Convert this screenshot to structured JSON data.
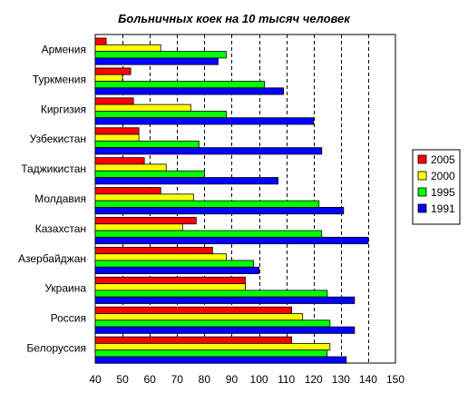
{
  "chart_data": {
    "type": "bar",
    "orientation": "horizontal",
    "title": "Больничных коек на 10 тысяч человек",
    "xlabel": "",
    "ylabel": "",
    "xlim": [
      40,
      150
    ],
    "xticks": [
      40,
      50,
      60,
      70,
      80,
      90,
      100,
      110,
      120,
      130,
      140,
      150
    ],
    "grid": "vertical dashed",
    "legend_position": "right",
    "categories": [
      "Армения",
      "Туркмения",
      "Киргизия",
      "Узбекистан",
      "Таджикистан",
      "Молдавия",
      "Казахстан",
      "Азербайджан",
      "Украина",
      "Россия",
      "Белоруссия"
    ],
    "series": [
      {
        "name": "2005",
        "color": "#ff0000",
        "values": [
          44,
          53,
          54,
          56,
          58,
          64,
          77,
          83,
          95,
          112,
          112
        ]
      },
      {
        "name": "2000",
        "color": "#ffff00",
        "values": [
          64,
          50,
          75,
          56,
          66,
          76,
          72,
          88,
          95,
          116,
          126
        ]
      },
      {
        "name": "1995",
        "color": "#00ff00",
        "values": [
          88,
          102,
          88,
          78,
          80,
          122,
          123,
          98,
          125,
          126,
          125
        ]
      },
      {
        "name": "1991",
        "color": "#0000ff",
        "values": [
          85,
          109,
          120,
          123,
          107,
          131,
          140,
          100,
          135,
          135,
          132
        ]
      }
    ]
  }
}
